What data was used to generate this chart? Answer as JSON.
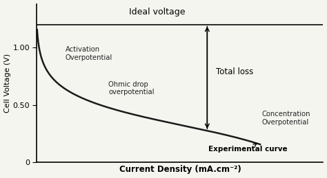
{
  "title": "Ideal voltage",
  "xlabel": "Current Density (mA.cm⁻²)",
  "ylabel": "Cell Voltage (V)",
  "ideal_voltage": 1.2,
  "yticks": [
    0,
    0.5,
    1.0
  ],
  "ytick_labels": [
    "0",
    "0.50",
    "1.00"
  ],
  "bg_color": "#f5f5f0",
  "line_color": "#1a1a1a",
  "annotation_activation": "Activation\nOverpotential",
  "annotation_ohmic": "Ohmic drop\noverpotential",
  "annotation_concentration": "Concentration\nOverpotential",
  "annotation_total": "Total loss",
  "annotation_experimental": "Experimental curve",
  "xmax": 1.0,
  "ymax": 1.38
}
